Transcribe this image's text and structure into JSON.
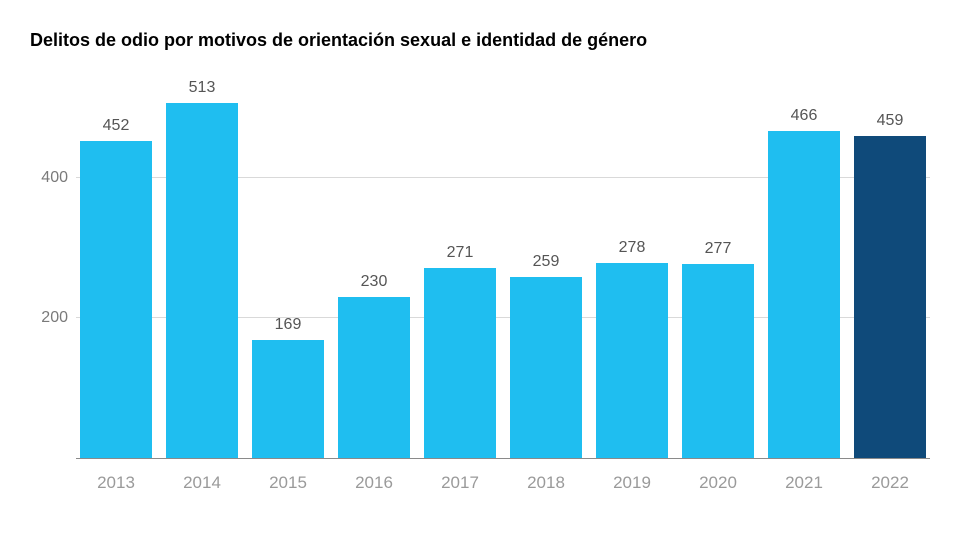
{
  "chart": {
    "type": "bar",
    "title": "Delitos de odio por motivos de orientación sexual e identidad de género",
    "title_fontsize": 18,
    "title_color": "#000000",
    "background_color": "#ffffff",
    "categories": [
      "2013",
      "2014",
      "2015",
      "2016",
      "2017",
      "2018",
      "2019",
      "2020",
      "2021",
      "2022"
    ],
    "values": [
      452,
      513,
      169,
      230,
      271,
      259,
      278,
      277,
      466,
      459
    ],
    "bar_colors": [
      "#1fbef0",
      "#1fbef0",
      "#1fbef0",
      "#1fbef0",
      "#1fbef0",
      "#1fbef0",
      "#1fbef0",
      "#1fbef0",
      "#1fbef0",
      "#0f4a7a"
    ],
    "value_label_color": "#555555",
    "value_label_fontsize": 16,
    "x_label_color": "#9a9a9a",
    "x_label_fontsize": 17,
    "y_label_color": "#7a7a7a",
    "y_label_fontsize": 16,
    "ylim": [
      0,
      540
    ],
    "yticks": [
      200,
      400
    ],
    "grid_color": "#d9d9d9",
    "baseline_color": "#8a8a8a",
    "bar_width_ratio": 0.9
  }
}
